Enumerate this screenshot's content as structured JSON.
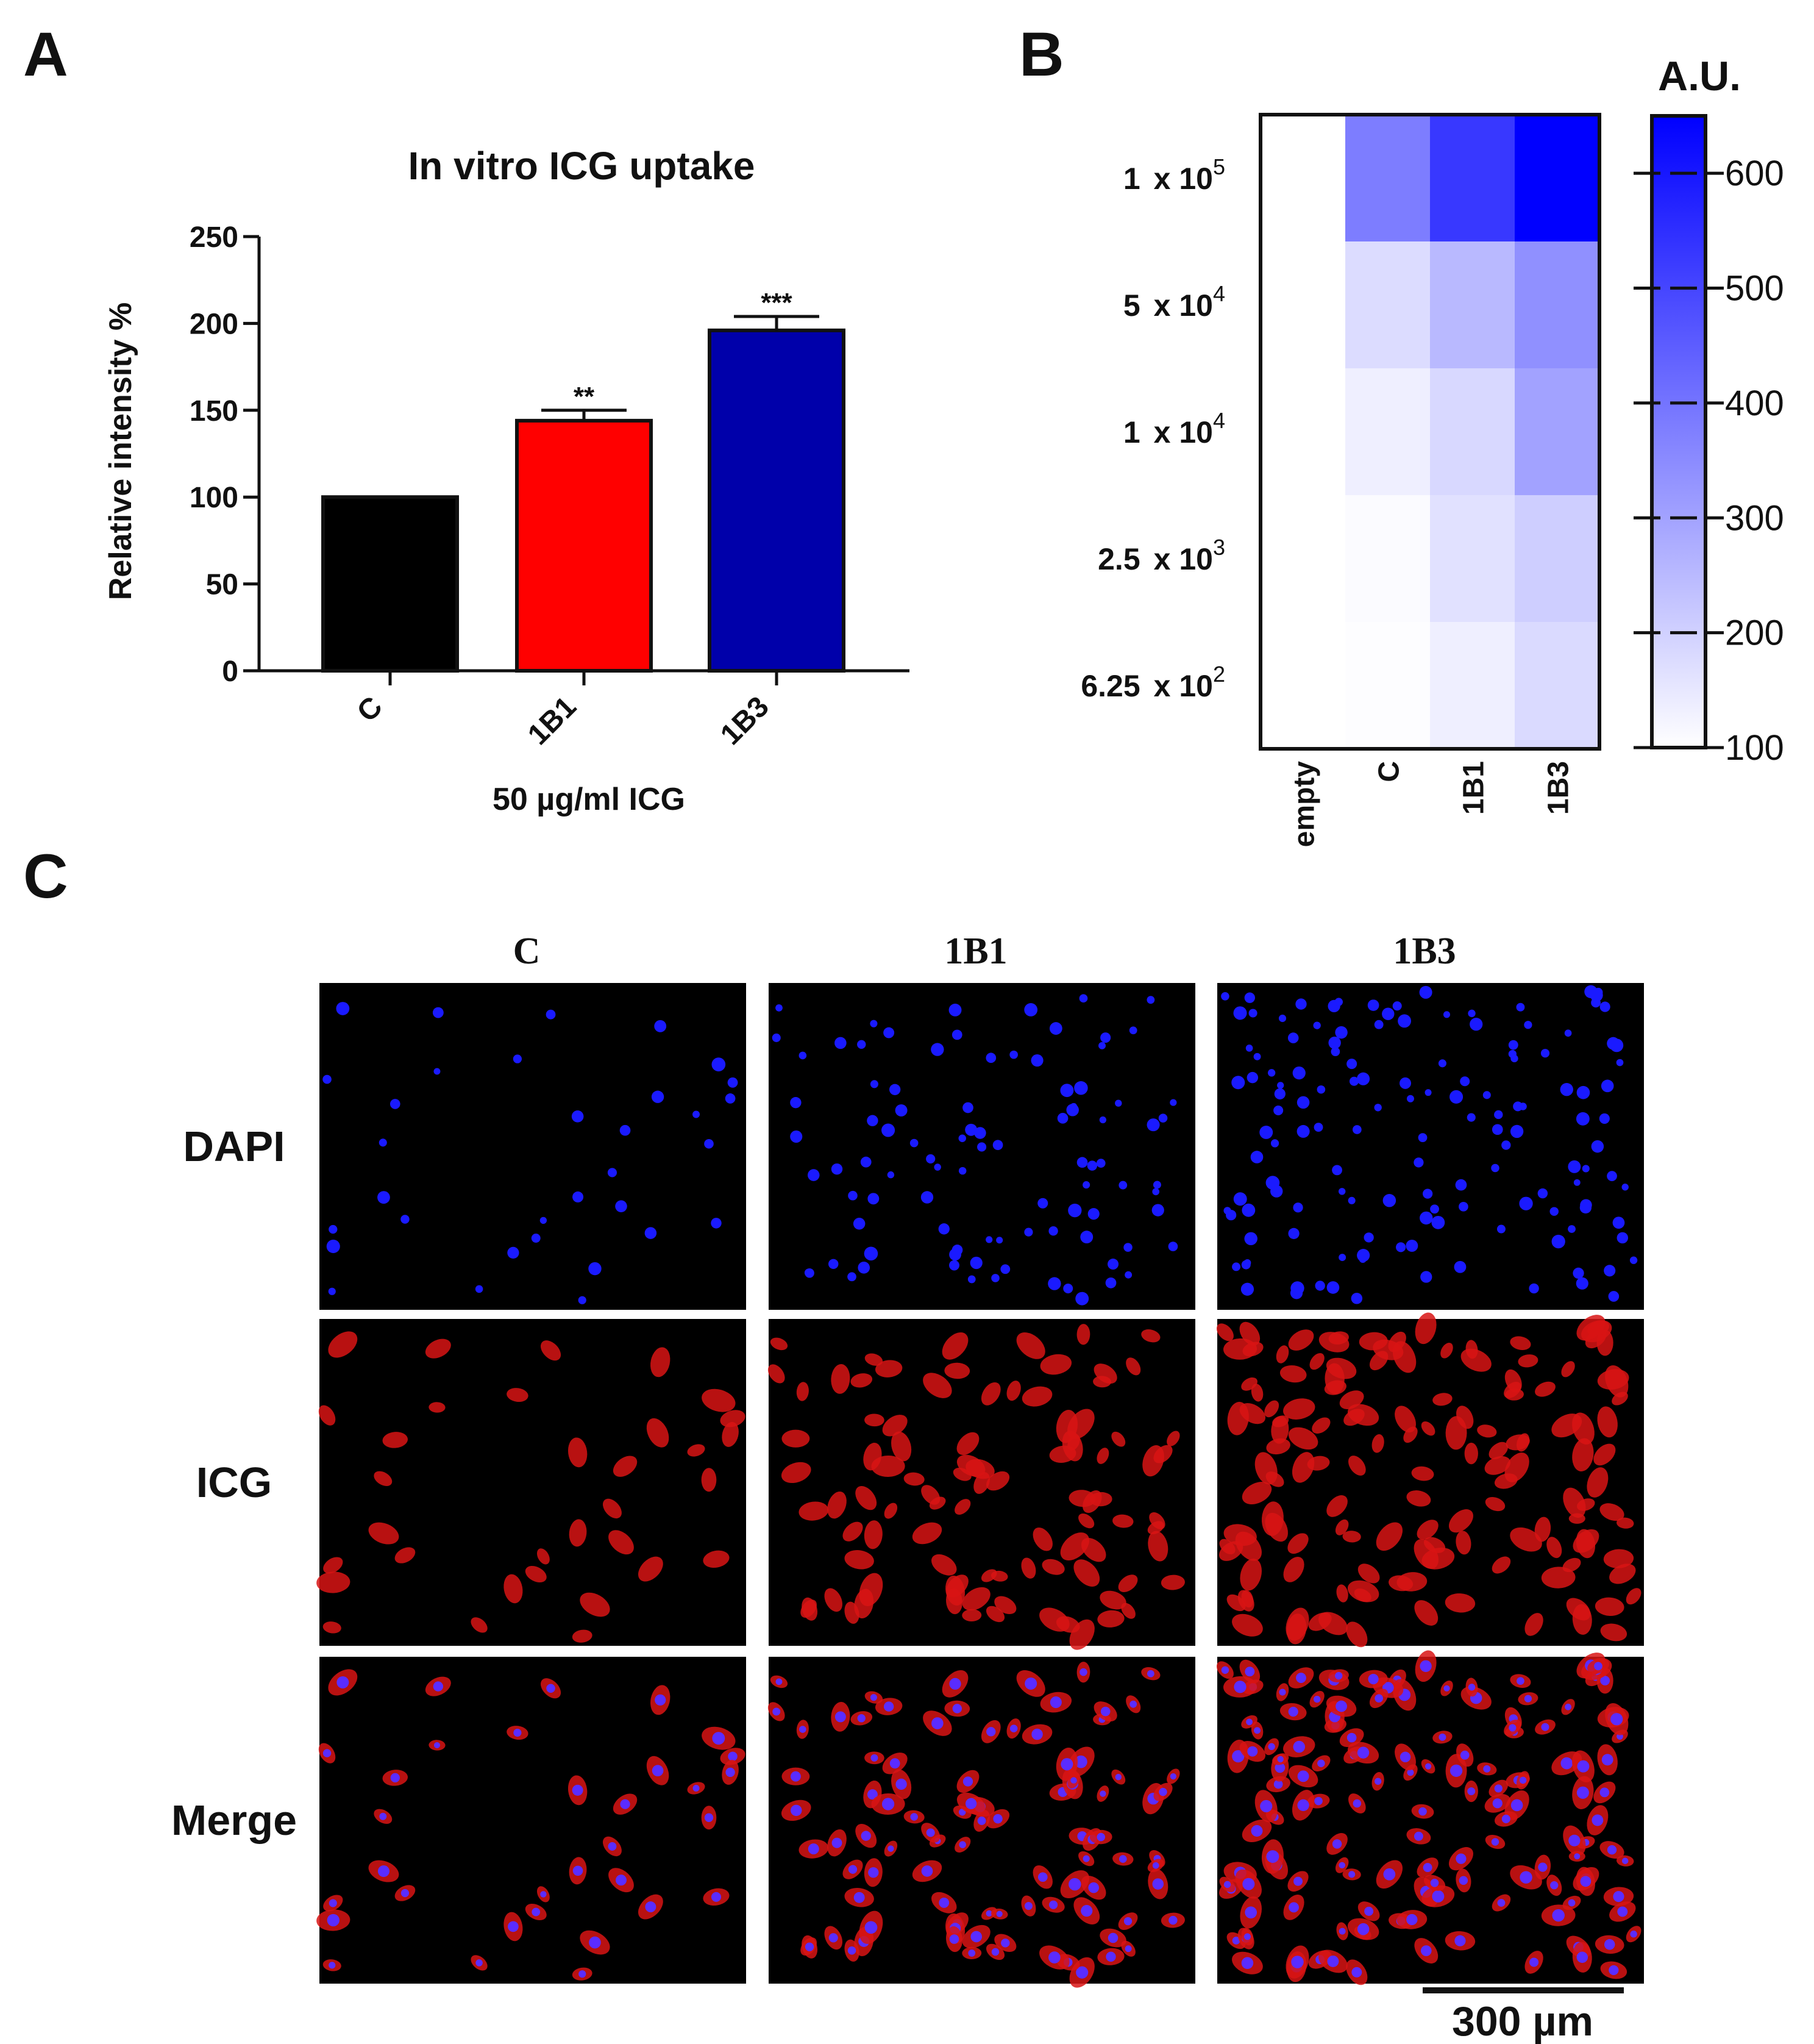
{
  "panel_a": {
    "letter": "A",
    "chart_data": {
      "type": "bar",
      "title": "In vitro  ICG uptake",
      "categories": [
        "C",
        "1B1",
        "1B3"
      ],
      "values": [
        100,
        144,
        196
      ],
      "errors": [
        0,
        6,
        8
      ],
      "significance": [
        "",
        "**",
        "***"
      ],
      "colors": [
        "#000000",
        "#ff0000",
        "#0000aa"
      ],
      "ylabel": "Relative intensity %",
      "xlabel": "50 µg/ml ICG",
      "ylim": [
        0,
        250
      ],
      "yticks": [
        "0",
        "50",
        "100",
        "150",
        "200",
        "250"
      ],
      "grid": false
    }
  },
  "panel_b": {
    "letter": "B",
    "colorbar_title": "A.U.",
    "row_labels": [
      {
        "mant": "1",
        "exp": "5"
      },
      {
        "mant": "5",
        "exp": "4"
      },
      {
        "mant": "1",
        "exp": "4"
      },
      {
        "mant": "2.5",
        "exp": "3"
      },
      {
        "mant": "6.25",
        "exp": "2"
      }
    ],
    "times_ten": "x 10",
    "chart_data": {
      "type": "heatmap",
      "columns": [
        "empty",
        "C",
        "1B1",
        "1B3"
      ],
      "rows": [
        "1 x 10^5",
        "5 x 10^4",
        "1 x 10^4",
        "2.5 x 10^3",
        "6.25 x 10^2"
      ],
      "values": [
        [
          100,
          380,
          530,
          650
        ],
        [
          100,
          175,
          250,
          340
        ],
        [
          100,
          135,
          185,
          300
        ],
        [
          100,
          108,
          165,
          205
        ],
        [
          100,
          105,
          135,
          180
        ]
      ],
      "colorbar": {
        "min": 100,
        "max": 650,
        "ticks": [
          "100",
          "200",
          "300",
          "400",
          "500",
          "600"
        ],
        "color_low": "#ffffff",
        "color_high": "#0000ff"
      }
    }
  },
  "panel_c": {
    "letter": "C",
    "columns": [
      "C",
      "1B1",
      "1B3"
    ],
    "rows": [
      "DAPI",
      "ICG",
      "Merge"
    ],
    "scale_bar": "300 µm",
    "cell_density": [
      0.15,
      0.55,
      0.85
    ]
  }
}
